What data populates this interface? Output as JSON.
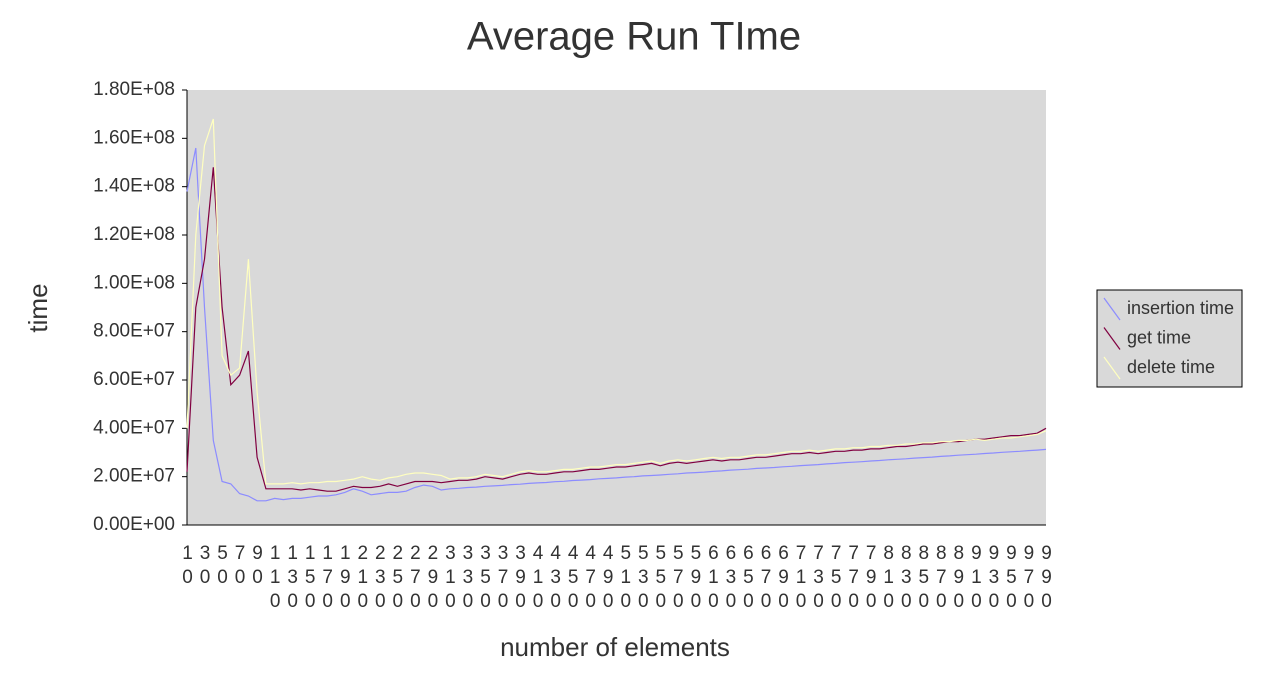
{
  "chart_data": {
    "type": "line",
    "title": "Average Run TIme",
    "x_label": "number of elements",
    "y_label": "time",
    "categories": [
      "10",
      null,
      "30",
      null,
      "50",
      null,
      "70",
      null,
      "90",
      null,
      "110",
      null,
      "130",
      null,
      "150",
      null,
      "170",
      null,
      "190",
      null,
      "210",
      null,
      "230",
      null,
      "250",
      null,
      "270",
      null,
      "290",
      null,
      "310",
      null,
      "330",
      null,
      "350",
      null,
      "370",
      null,
      "390",
      null,
      "410",
      null,
      "430",
      null,
      "450",
      null,
      "470",
      null,
      "490",
      null,
      "510",
      null,
      "530",
      null,
      "550",
      null,
      "570",
      null,
      "590",
      null,
      "610",
      null,
      "630",
      null,
      "650",
      null,
      "670",
      null,
      "690",
      null,
      "710",
      null,
      "730",
      null,
      "750",
      null,
      "770",
      null,
      "790",
      null,
      "810",
      null,
      "830",
      null,
      "850",
      null,
      "870",
      null,
      "890",
      null,
      "910",
      null,
      "930",
      null,
      "950",
      null,
      "970",
      null,
      "990"
    ],
    "series": [
      {
        "name": "insertion time",
        "color": "#8c8cff",
        "values": [
          138000000.0,
          156000000.0,
          90000000.0,
          35000000.0,
          18000000.0,
          17000000.0,
          13000000.0,
          12000000.0,
          10000000.0,
          10000000.0,
          11000000.0,
          10500000.0,
          11000000.0,
          11000000.0,
          11500000.0,
          12000000.0,
          12000000.0,
          12500000.0,
          13500000.0,
          15000000.0,
          14000000.0,
          12500000.0,
          13000000.0,
          13500000.0,
          13500000.0,
          14000000.0,
          15500000.0,
          16500000.0,
          16000000.0,
          14500000.0,
          15000000.0,
          15200000.0,
          15500000.0,
          15700000.0,
          16000000.0,
          16200000.0,
          16400000.0,
          16700000.0,
          16900000.0,
          17200000.0,
          17400000.0,
          17600000.0,
          17900000.0,
          18100000.0,
          18400000.0,
          18600000.0,
          18800000.0,
          19100000.0,
          19300000.0,
          19500000.0,
          19800000.0,
          20000000.0,
          20300000.0,
          20500000.0,
          20700000.0,
          21000000.0,
          21200000.0,
          21500000.0,
          21700000.0,
          21900000.0,
          22200000.0,
          22400000.0,
          22700000.0,
          22900000.0,
          23100000.0,
          23400000.0,
          23600000.0,
          23800000.0,
          24100000.0,
          24300000.0,
          24600000.0,
          24800000.0,
          25000000.0,
          25300000.0,
          25500000.0,
          25800000.0,
          26000000.0,
          26200000.0,
          26500000.0,
          26700000.0,
          27000000.0,
          27200000.0,
          27400000.0,
          27700000.0,
          27900000.0,
          28100000.0,
          28400000.0,
          28600000.0,
          28900000.0,
          29100000.0,
          29300000.0,
          29600000.0,
          29800000.0,
          30100000.0,
          30300000.0,
          30500000.0,
          30800000.0,
          31000000.0,
          31300000.0
        ]
      },
      {
        "name": "get time",
        "color": "#800040",
        "values": [
          22000000.0,
          90000000.0,
          110000000.0,
          148000000.0,
          90000000.0,
          58000000.0,
          62000000.0,
          72000000.0,
          28000000.0,
          15000000.0,
          15000000.0,
          15000000.0,
          15000000.0,
          14500000.0,
          15000000.0,
          14500000.0,
          14000000.0,
          14000000.0,
          15000000.0,
          16000000.0,
          15500000.0,
          15500000.0,
          16000000.0,
          17000000.0,
          16000000.0,
          17000000.0,
          18000000.0,
          18000000.0,
          18000000.0,
          17500000.0,
          18000000.0,
          18500000.0,
          18500000.0,
          19000000.0,
          20000000.0,
          19500000.0,
          19000000.0,
          20000000.0,
          21000000.0,
          21500000.0,
          21000000.0,
          21000000.0,
          21500000.0,
          22000000.0,
          22000000.0,
          22500000.0,
          23000000.0,
          23000000.0,
          23500000.0,
          24000000.0,
          24000000.0,
          24500000.0,
          25000000.0,
          25500000.0,
          24500000.0,
          25500000.0,
          26000000.0,
          25500000.0,
          26000000.0,
          26500000.0,
          27000000.0,
          26500000.0,
          27000000.0,
          27000000.0,
          27500000.0,
          28000000.0,
          28000000.0,
          28500000.0,
          29000000.0,
          29500000.0,
          29500000.0,
          30000000.0,
          29500000.0,
          30000000.0,
          30500000.0,
          30500000.0,
          31000000.0,
          31000000.0,
          31500000.0,
          31500000.0,
          32000000.0,
          32500000.0,
          32500000.0,
          33000000.0,
          33500000.0,
          33500000.0,
          34000000.0,
          34500000.0,
          34500000.0,
          35000000.0,
          35500000.0,
          35500000.0,
          36000000.0,
          36500000.0,
          37000000.0,
          37000000.0,
          37500000.0,
          38000000.0,
          40000000.0
        ]
      },
      {
        "name": "delete time",
        "color": "#ffffc0",
        "values": [
          40000000.0,
          120000000.0,
          157000000.0,
          168000000.0,
          70000000.0,
          62000000.0,
          65000000.0,
          110000000.0,
          55000000.0,
          17000000.0,
          17000000.0,
          17000000.0,
          17500000.0,
          17000000.0,
          17500000.0,
          17500000.0,
          18000000.0,
          18000000.0,
          18500000.0,
          19000000.0,
          20000000.0,
          19000000.0,
          18500000.0,
          19500000.0,
          20000000.0,
          21000000.0,
          21500000.0,
          21500000.0,
          21000000.0,
          20500000.0,
          19000000.0,
          19500000.0,
          19500000.0,
          20000000.0,
          21000000.0,
          20500000.0,
          20000000.0,
          21000000.0,
          22000000.0,
          22500000.0,
          22000000.0,
          22000000.0,
          22500000.0,
          23000000.0,
          23000000.0,
          23500000.0,
          24000000.0,
          24000000.0,
          24500000.0,
          25000000.0,
          25000000.0,
          25500000.0,
          26000000.0,
          26500000.0,
          25500000.0,
          26500000.0,
          27000000.0,
          26500000.0,
          27000000.0,
          27500000.0,
          28000000.0,
          27500000.0,
          28000000.0,
          28000000.0,
          28500000.0,
          29000000.0,
          29000000.0,
          29500000.0,
          30000000.0,
          30500000.0,
          30500000.0,
          31000000.0,
          30500000.0,
          31000000.0,
          31500000.0,
          31500000.0,
          32000000.0,
          32000000.0,
          32500000.0,
          32500000.0,
          33000000.0,
          33000000.0,
          33500000.0,
          33500000.0,
          34000000.0,
          34000000.0,
          34500000.0,
          34500000.0,
          35000000.0,
          35000000.0,
          35500000.0,
          35000000.0,
          35500000.0,
          36000000.0,
          36000000.0,
          36500000.0,
          37000000.0,
          37500000.0,
          39000000.0
        ]
      }
    ],
    "ylim": [
      0,
      180000000
    ],
    "yticks": [
      {
        "value": 0,
        "label": "0.00E+00"
      },
      {
        "value": 20000000,
        "label": "2.00E+07"
      },
      {
        "value": 40000000,
        "label": "4.00E+07"
      },
      {
        "value": 60000000,
        "label": "6.00E+07"
      },
      {
        "value": 80000000,
        "label": "8.00E+07"
      },
      {
        "value": 100000000,
        "label": "1.00E+08"
      },
      {
        "value": 120000000,
        "label": "1.20E+08"
      },
      {
        "value": 140000000,
        "label": "1.40E+08"
      },
      {
        "value": 160000000,
        "label": "1.60E+08"
      },
      {
        "value": 180000000,
        "label": "1.80E+08"
      }
    ],
    "grid": false,
    "legend": "right"
  }
}
